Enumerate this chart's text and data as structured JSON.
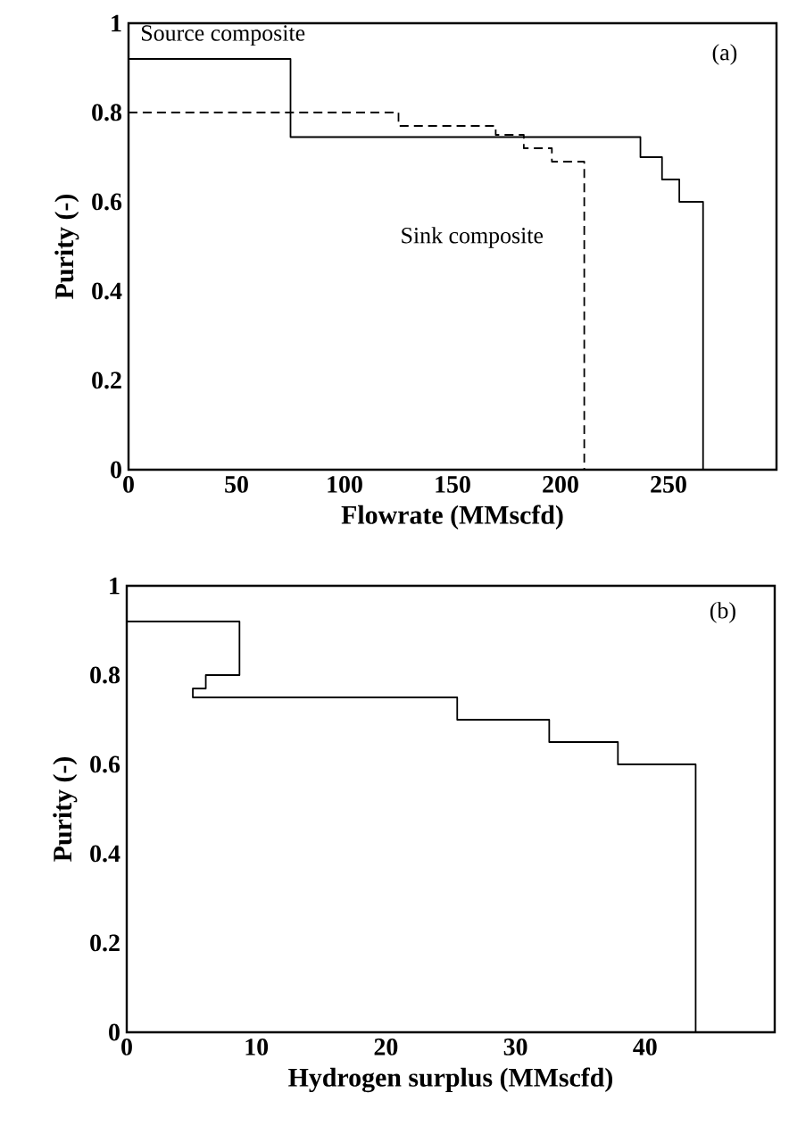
{
  "chart_data": [
    {
      "type": "step",
      "xlabel": "Flowrate (MMscfd)",
      "ylabel": "Purity (-)",
      "xlim": [
        0,
        300
      ],
      "ylim": [
        0,
        1
      ],
      "xticks": [
        0,
        50,
        100,
        150,
        200,
        250
      ],
      "yticks": [
        0,
        0.2,
        0.4,
        0.6,
        0.8,
        1
      ],
      "series": [
        {
          "color": "#000000",
          "line_style": "solid",
          "x": [
            0,
            75,
            237,
            247,
            255,
            266
          ],
          "values": [
            0.92,
            0.745,
            0.7,
            0.65,
            0.6,
            0
          ]
        },
        {
          "color": "#000000",
          "line_style": "dashed",
          "x": [
            0,
            125,
            170,
            183,
            196,
            211
          ],
          "values": [
            0.8,
            0.77,
            0.75,
            0.72,
            0.69,
            0
          ]
        }
      ],
      "annotations": [
        "Source composite",
        "Sink composite",
        "(a)"
      ]
    },
    {
      "type": "line",
      "xlabel": "Hydrogen surplus (MMscfd)",
      "ylabel": "Purity (-)",
      "xlim": [
        0,
        50
      ],
      "ylim": [
        0,
        1
      ],
      "xticks": [
        0,
        10,
        20,
        30,
        40
      ],
      "yticks": [
        0,
        0.2,
        0.4,
        0.6,
        0.8,
        1
      ],
      "series": [
        {
          "color": "#000000",
          "line_style": "solid",
          "x": [
            0,
            8.7,
            8.7,
            6.1,
            6.1,
            5.1,
            5.1,
            25.5,
            25.5,
            32.6,
            32.6,
            37.9,
            37.9,
            43.9,
            43.9
          ],
          "values": [
            0.92,
            0.92,
            0.8,
            0.8,
            0.77,
            0.77,
            0.75,
            0.75,
            0.7,
            0.7,
            0.65,
            0.65,
            0.6,
            0.6,
            0
          ]
        }
      ],
      "annotations": [
        "(b)"
      ]
    }
  ]
}
